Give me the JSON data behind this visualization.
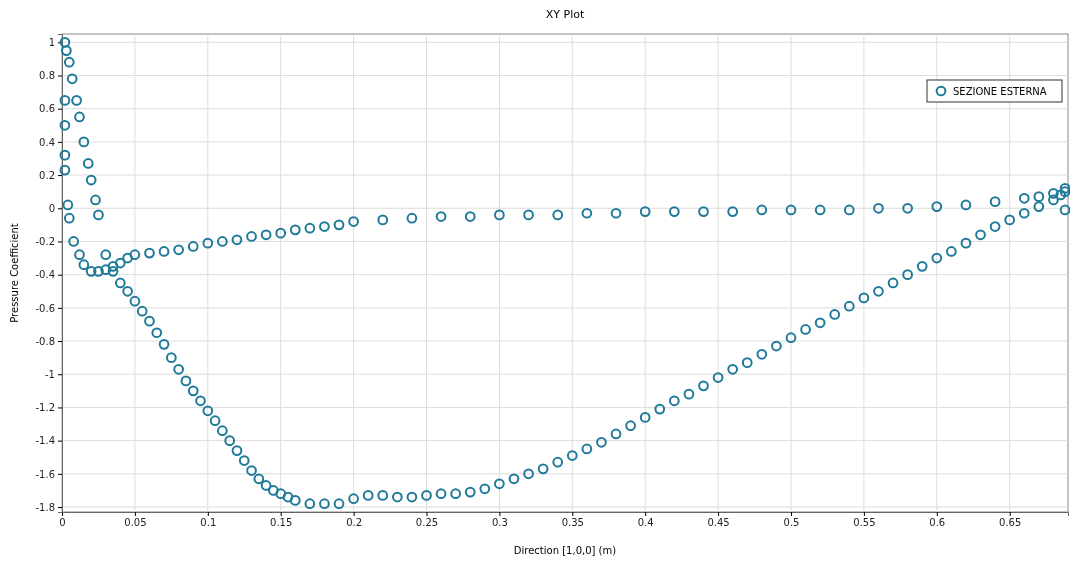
{
  "chart_data": {
    "type": "scatter",
    "title": "XY Plot",
    "xlabel": "Direction [1,0,0] (m)",
    "ylabel": "Pressure Coefficient",
    "xlim": [
      0,
      0.69
    ],
    "ylim": [
      -1.83,
      1.05
    ],
    "xticks": [
      0,
      0.05,
      0.1,
      0.15,
      0.2,
      0.25,
      0.3,
      0.35,
      0.4,
      0.45,
      0.5,
      0.55,
      0.6,
      0.65
    ],
    "yticks": [
      -1.8,
      -1.6,
      -1.4,
      -1.2,
      -1,
      -0.8,
      -0.6,
      -0.4,
      -0.2,
      0,
      0.2,
      0.4,
      0.6,
      0.8,
      1
    ],
    "grid": true,
    "legend": "top right",
    "marker": "circle",
    "series": [
      {
        "name": "SEZIONE ESTERNA",
        "color": "#1f7a99",
        "x": [
          0.002,
          0.003,
          0.005,
          0.007,
          0.01,
          0.012,
          0.015,
          0.018,
          0.02,
          0.023,
          0.025,
          0.03,
          0.035,
          0.04,
          0.045,
          0.05,
          0.055,
          0.06,
          0.065,
          0.07,
          0.075,
          0.08,
          0.085,
          0.09,
          0.095,
          0.1,
          0.105,
          0.11,
          0.115,
          0.12,
          0.125,
          0.13,
          0.135,
          0.14,
          0.145,
          0.15,
          0.155,
          0.16,
          0.17,
          0.18,
          0.19,
          0.2,
          0.21,
          0.22,
          0.23,
          0.24,
          0.25,
          0.26,
          0.27,
          0.28,
          0.29,
          0.3,
          0.31,
          0.32,
          0.33,
          0.34,
          0.35,
          0.36,
          0.37,
          0.38,
          0.39,
          0.4,
          0.41,
          0.42,
          0.43,
          0.44,
          0.45,
          0.46,
          0.47,
          0.48,
          0.49,
          0.5,
          0.51,
          0.52,
          0.53,
          0.54,
          0.55,
          0.56,
          0.57,
          0.58,
          0.59,
          0.6,
          0.61,
          0.62,
          0.63,
          0.64,
          0.65,
          0.66,
          0.67,
          0.68,
          0.685,
          0.688,
          0.002,
          0.002,
          0.002,
          0.002,
          0.004,
          0.005,
          0.008,
          0.012,
          0.015,
          0.02,
          0.025,
          0.03,
          0.035,
          0.04,
          0.045,
          0.05,
          0.06,
          0.07,
          0.08,
          0.09,
          0.1,
          0.11,
          0.12,
          0.13,
          0.14,
          0.15,
          0.16,
          0.17,
          0.18,
          0.19,
          0.2,
          0.22,
          0.24,
          0.26,
          0.28,
          0.3,
          0.32,
          0.34,
          0.36,
          0.38,
          0.4,
          0.42,
          0.44,
          0.46,
          0.48,
          0.5,
          0.52,
          0.54,
          0.56,
          0.58,
          0.6,
          0.62,
          0.64,
          0.66,
          0.67,
          0.68,
          0.688,
          0.688
        ],
        "values": [
          1.0,
          0.95,
          0.88,
          0.78,
          0.65,
          0.55,
          0.4,
          0.27,
          0.17,
          0.05,
          -0.04,
          -0.28,
          -0.38,
          -0.45,
          -0.5,
          -0.56,
          -0.62,
          -0.68,
          -0.75,
          -0.82,
          -0.9,
          -0.97,
          -1.04,
          -1.1,
          -1.16,
          -1.22,
          -1.28,
          -1.34,
          -1.4,
          -1.46,
          -1.52,
          -1.58,
          -1.63,
          -1.67,
          -1.7,
          -1.72,
          -1.74,
          -1.76,
          -1.78,
          -1.78,
          -1.78,
          -1.75,
          -1.73,
          -1.73,
          -1.74,
          -1.74,
          -1.73,
          -1.72,
          -1.72,
          -1.71,
          -1.69,
          -1.66,
          -1.63,
          -1.6,
          -1.57,
          -1.53,
          -1.49,
          -1.45,
          -1.41,
          -1.36,
          -1.31,
          -1.26,
          -1.21,
          -1.16,
          -1.12,
          -1.07,
          -1.02,
          -0.97,
          -0.93,
          -0.88,
          -0.83,
          -0.78,
          -0.73,
          -0.69,
          -0.64,
          -0.59,
          -0.54,
          -0.5,
          -0.45,
          -0.4,
          -0.35,
          -0.3,
          -0.26,
          -0.21,
          -0.16,
          -0.11,
          -0.07,
          -0.03,
          0.01,
          0.05,
          0.08,
          0.1,
          0.65,
          0.5,
          0.32,
          0.23,
          0.02,
          -0.06,
          -0.2,
          -0.28,
          -0.34,
          -0.38,
          -0.38,
          -0.37,
          -0.35,
          -0.33,
          -0.3,
          -0.28,
          -0.27,
          -0.26,
          -0.25,
          -0.23,
          -0.21,
          -0.2,
          -0.19,
          -0.17,
          -0.16,
          -0.15,
          -0.13,
          -0.12,
          -0.11,
          -0.1,
          -0.08,
          -0.07,
          -0.06,
          -0.05,
          -0.05,
          -0.04,
          -0.04,
          -0.04,
          -0.03,
          -0.03,
          -0.02,
          -0.02,
          -0.02,
          -0.02,
          -0.01,
          -0.01,
          -0.01,
          -0.01,
          0.0,
          0.0,
          0.01,
          0.02,
          0.04,
          0.06,
          0.07,
          0.09,
          0.12,
          -0.01
        ]
      }
    ]
  }
}
